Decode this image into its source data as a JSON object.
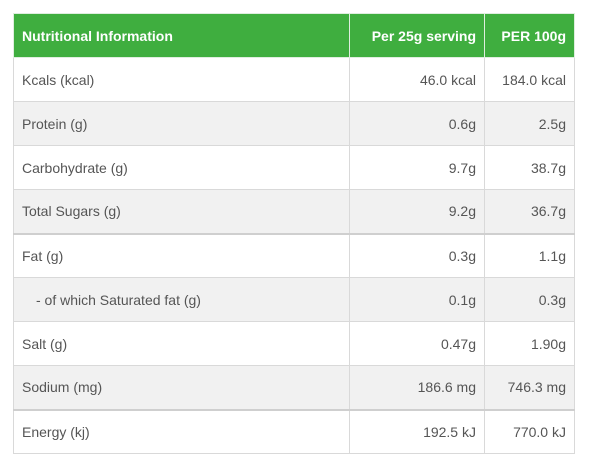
{
  "table": {
    "headers": [
      "Nutritional Information",
      "Per 25g serving",
      "PER 100g"
    ],
    "rows": [
      {
        "label": "Kcals (kcal)",
        "per_serving": "46.0 kcal",
        "per_100g": "184.0 kcal"
      },
      {
        "label": "Protein (g)",
        "per_serving": "0.6g",
        "per_100g": "2.5g"
      },
      {
        "label": "Carbohydrate (g)",
        "per_serving": "9.7g",
        "per_100g": "38.7g"
      },
      {
        "label": "Total Sugars (g)",
        "per_serving": "9.2g",
        "per_100g": "36.7g"
      },
      {
        "label": "Fat (g)",
        "per_serving": "0.3g",
        "per_100g": "1.1g"
      },
      {
        "label": "- of which Saturated fat (g)",
        "per_serving": "0.1g",
        "per_100g": "0.3g"
      },
      {
        "label": "Salt (g)",
        "per_serving": "0.47g",
        "per_100g": "1.90g"
      },
      {
        "label": "Sodium (mg)",
        "per_serving": "186.6 mg",
        "per_100g": "746.3 mg"
      },
      {
        "label": "Energy (kj)",
        "per_serving": "192.5 kJ",
        "per_100g": "770.0 kJ"
      }
    ]
  },
  "colors": {
    "header_bg": "#3fae3f",
    "header_text": "#ffffff",
    "row_alt_bg": "#f1f1f1",
    "body_text": "#555555"
  }
}
